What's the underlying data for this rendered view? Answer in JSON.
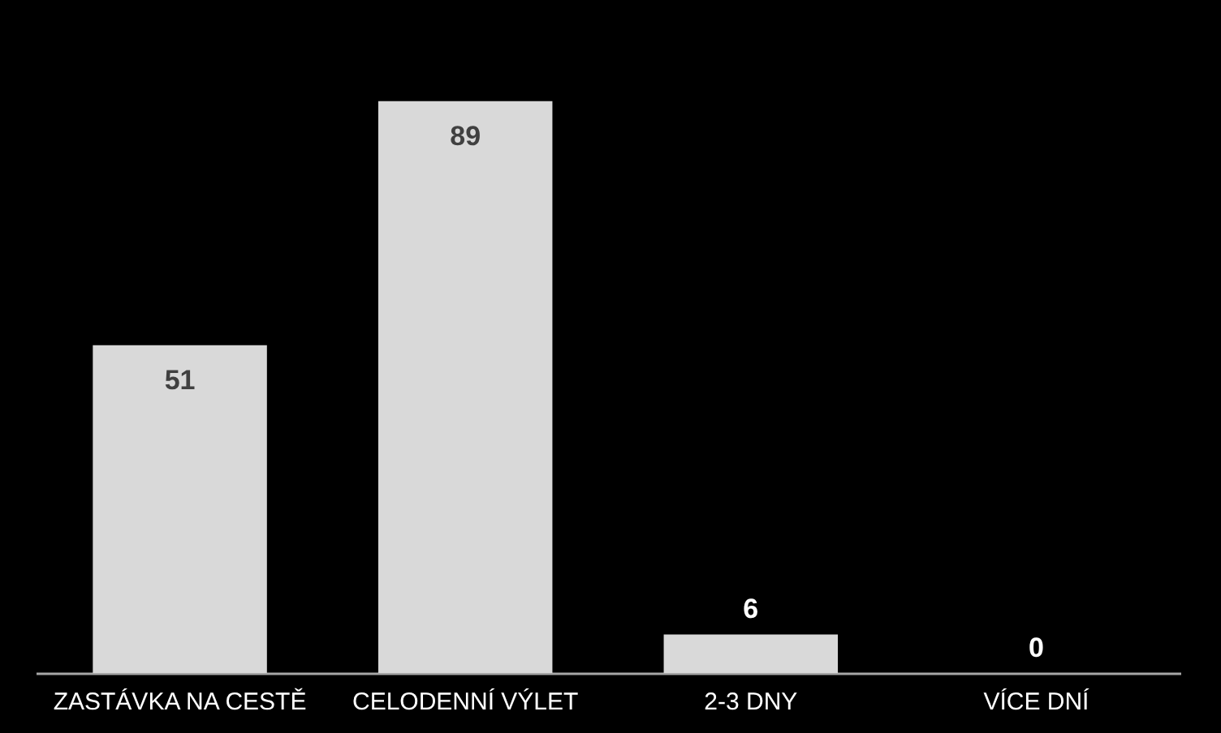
{
  "chart_data": {
    "type": "bar",
    "categories": [
      "ZASTÁVKA NA CESTĚ",
      "CELODENNÍ VÝLET",
      "2-3 DNY",
      "VÍCE DNÍ"
    ],
    "values": [
      51,
      89,
      6,
      0
    ],
    "color": "#d9d9d9",
    "data_labels": true,
    "grid": false
  }
}
